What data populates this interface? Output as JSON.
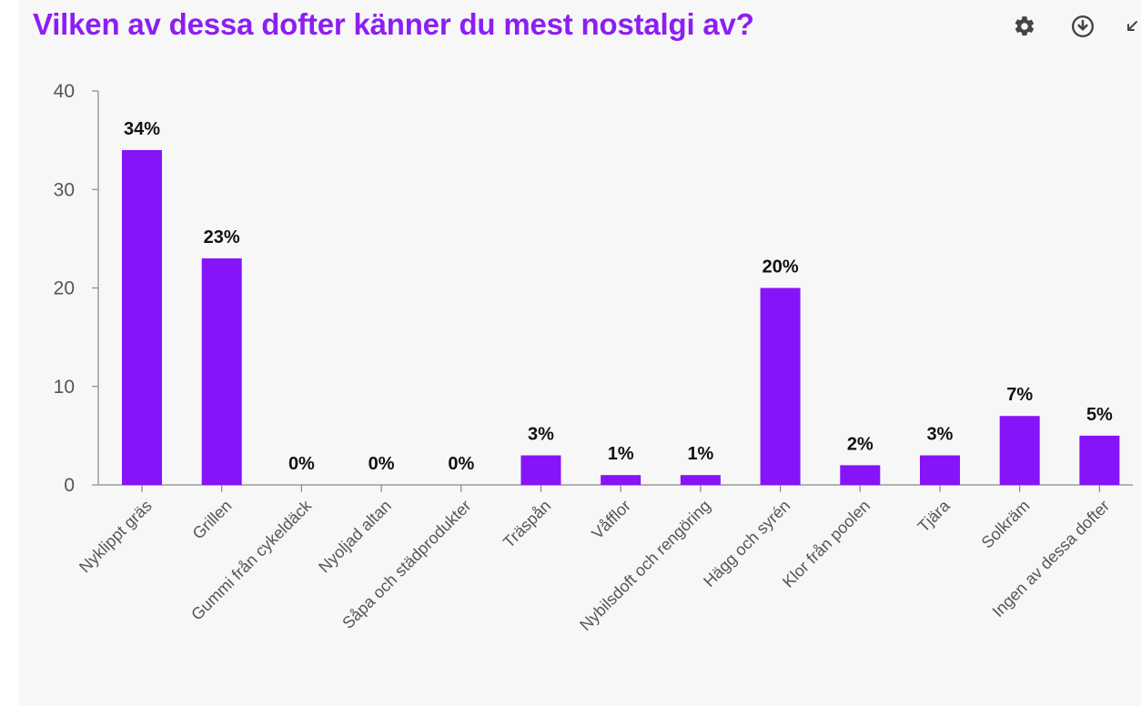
{
  "header": {
    "title": "Vilken av dessa dofter känner du mest nostalgi av?"
  },
  "toolbar": {
    "settings_icon": "gear-icon",
    "download_icon": "download-icon",
    "collapse_icon": "collapse-arrow-icon"
  },
  "colors": {
    "accent": "#8b1ff2",
    "bar": "#8514f9",
    "panel_bg": "#f7f7f7"
  },
  "chart_data": {
    "type": "bar",
    "title": "Vilken av dessa dofter känner du mest nostalgi av?",
    "categories": [
      "Nyklippt gräs",
      "Grillen",
      "Gummi från cykeldäck",
      "Nyoljad altan",
      "Såpa och städprodukter",
      "Träspån",
      "Våfflor",
      "Nybilsdoft och rengöring",
      "Hägg och syrén",
      "Klor från poolen",
      "Tjära",
      "Solkräm",
      "Ingen av dessa dofter"
    ],
    "values": [
      34,
      23,
      0,
      0,
      0,
      3,
      1,
      1,
      20,
      2,
      3,
      7,
      5
    ],
    "data_labels": [
      "34%",
      "23%",
      "0%",
      "0%",
      "0%",
      "3%",
      "1%",
      "1%",
      "20%",
      "2%",
      "3%",
      "7%",
      "5%"
    ],
    "yticks": [
      "0",
      "10",
      "20",
      "30",
      "40"
    ],
    "ylim": [
      0,
      40
    ],
    "xlabel": "",
    "ylabel": "",
    "grid": false,
    "legend": "none"
  }
}
